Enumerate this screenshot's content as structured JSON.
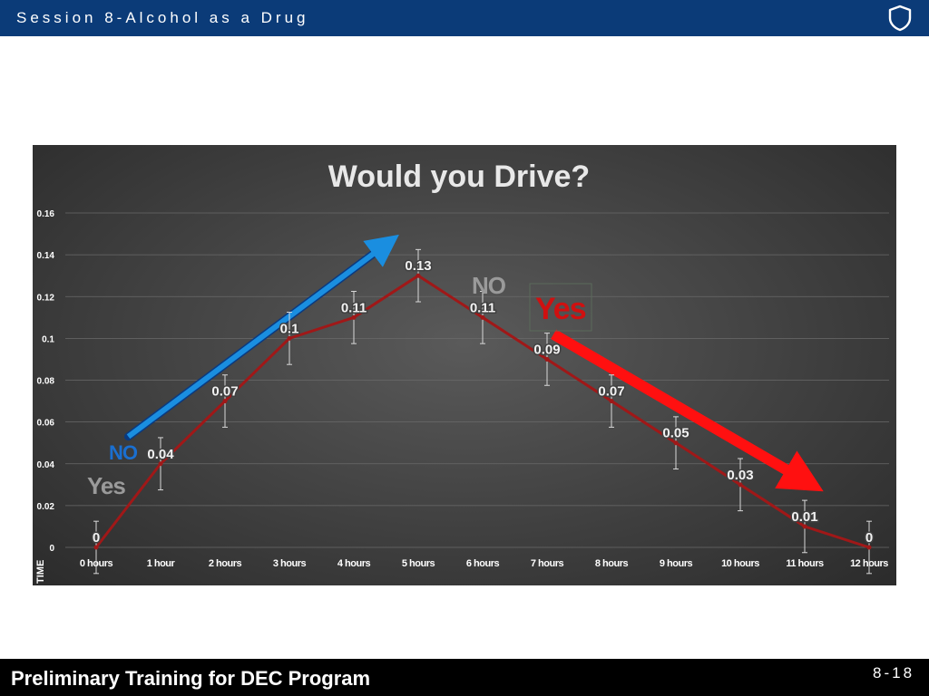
{
  "header": {
    "title": "Session 8-Alcohol as a Drug",
    "icon": "shield-icon"
  },
  "footer": {
    "title": "Preliminary Training for DEC Program",
    "page_number": "8-18"
  },
  "chart_data": {
    "type": "line",
    "title": "Would you Drive?",
    "xlabel": "TIME",
    "ylabel": "",
    "categories": [
      "0 hours",
      "1 hour",
      "2 hours",
      "3 hours",
      "4 hours",
      "5 hours",
      "6 hours",
      "7 hours",
      "8 hours",
      "9 hours",
      "10 hours",
      "11 hours",
      "12 hours"
    ],
    "series": [
      {
        "values": [
          0,
          0.04,
          0.07,
          0.1,
          0.11,
          0.13,
          0.11,
          0.09,
          0.07,
          0.05,
          0.03,
          0.01,
          0
        ],
        "labels": [
          "0",
          "0.04",
          "0.07",
          "0.1",
          "0.11",
          "0.13",
          "0.11",
          "0.09",
          "0.07",
          "0.05",
          "0.03",
          "0.01",
          "0"
        ],
        "color": "#a01818"
      }
    ],
    "error_bar": 0.0125,
    "ylim": [
      0,
      0.16
    ],
    "y_ticks": [
      0,
      0.02,
      0.04,
      0.06,
      0.08,
      0.1,
      0.12,
      0.14,
      0.16
    ],
    "y_tick_labels": [
      "0",
      "0.02",
      "0.04",
      "0.06",
      "0.08",
      "0.1",
      "0.12",
      "0.14",
      "0.16"
    ],
    "grid": true,
    "annotations": {
      "rising_no": {
        "text": "NO",
        "color": "#1a6fd0"
      },
      "rising_yes": {
        "text": "Yes",
        "color": "#9a9a9a"
      },
      "falling_no": {
        "text": "NO",
        "color": "#9a9a9a"
      },
      "falling_yes": {
        "text": "Yes",
        "color": "#d01010"
      }
    },
    "arrows": {
      "rising": {
        "color": "#1a8ee0",
        "from_x": "0.5 hours",
        "to_x": "4.5 hours",
        "from_y": 0.053,
        "to_y": 0.145
      },
      "falling": {
        "color": "#ff1010",
        "from_x": "7.1 hours",
        "to_x": "11 hours",
        "from_y": 0.102,
        "to_y": 0.032
      }
    }
  }
}
